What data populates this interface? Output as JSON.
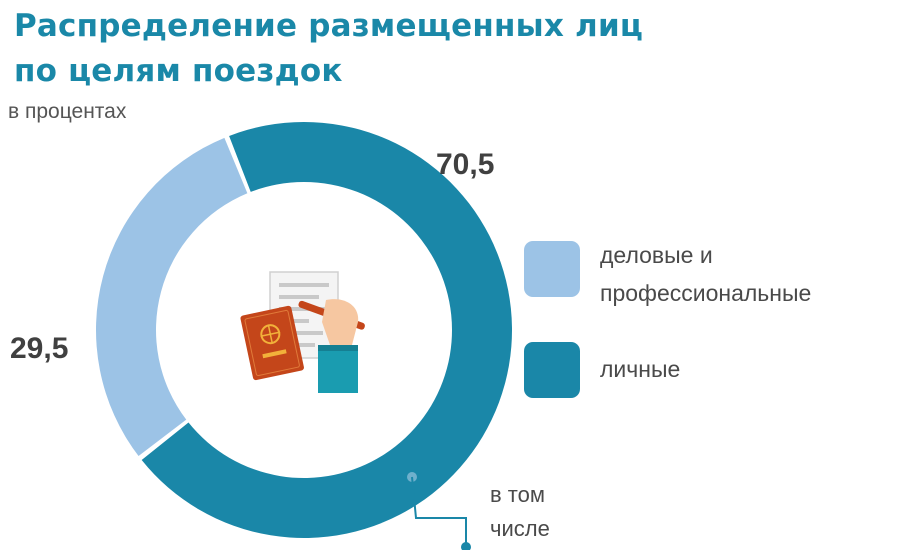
{
  "title_line1": "Распределение размещенных лиц",
  "title_line2": "по целям поездок",
  "subtitle": "в процентах",
  "chart_data": {
    "type": "pie",
    "title": "Распределение размещенных лиц по целям поездок",
    "unit": "в процентах",
    "categories": [
      "деловые и профессиональные",
      "личные"
    ],
    "values": [
      29.5,
      70.5
    ],
    "value_labels": [
      "29,5",
      "70,5"
    ],
    "colors": [
      "#9cc3e6",
      "#1a87a8"
    ],
    "legend_position": "right"
  },
  "legend": [
    {
      "line1": "деловые и",
      "line2": "профессиональные",
      "color": "#9cc3e6"
    },
    {
      "line1": "личные",
      "line2": "",
      "color": "#1a87a8"
    }
  ],
  "annotation": {
    "line1": "в том",
    "line2": "числе"
  },
  "center_icon": "passport-and-form-icon"
}
